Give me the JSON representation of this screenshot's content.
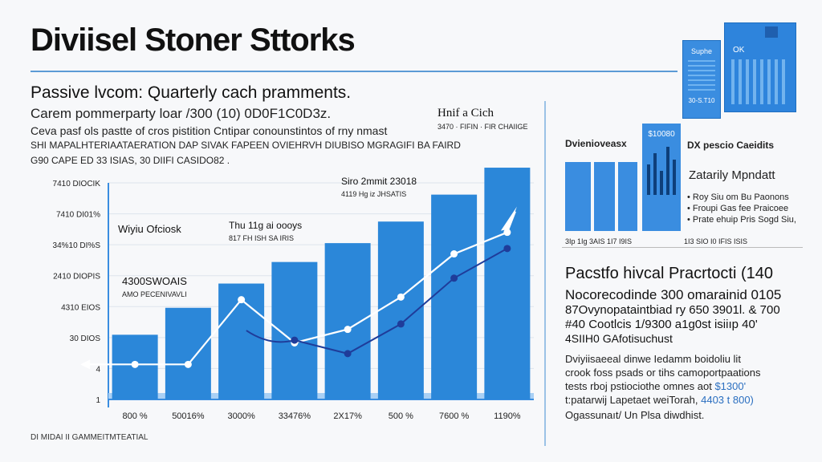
{
  "header": {
    "title": "Diviisel Stoner Sttorks",
    "subtitle": "Passive lvcom: Quarterly cach pramments.",
    "lines": [
      "Carem pommerparty loar /300 (10) 0D0F1C0D3z.",
      "Ceva pasf ols pastte of cros pistition Cntipar conounstintos of rny nmast",
      "SHI MAPALHTERIAATAERATION DAP SIVAK FAPEEN OVIEHRVH DIUBISO MGRAGIFI BA FAIRD",
      "G90 CAPE ED 33 ISIAS, 30 DIIFI CASIDO82 ."
    ]
  },
  "chart_data": {
    "type": "bar",
    "title": "Hnif a Cich",
    "subtitle": "3470 · FIFIN · FIR CHAIIGE",
    "categories": [
      "800 %",
      "50016%",
      "3000%",
      "33476%",
      "2X17%",
      "500 %",
      "7600 %",
      "1190%"
    ],
    "values": [
      24,
      34,
      43,
      51,
      58,
      66,
      76,
      86
    ],
    "ylim": [
      0,
      100
    ],
    "y_ticks": [
      "1",
      "4",
      "30 DIOS",
      "4310 EIOS",
      "2410 DIOPIS",
      "34%10 DI%S",
      "7410 DI01%",
      "7410 DIOCIK"
    ],
    "series": [
      {
        "values": [
          13,
          13,
          37,
          21,
          26,
          38,
          54,
          62
        ]
      },
      {
        "values": [
          null,
          null,
          null,
          22,
          17,
          28,
          45,
          56
        ]
      }
    ],
    "annotations": [
      {
        "label": "Wiyiu Ofciosk",
        "category": 0
      },
      {
        "label": "Thu 11g ai oooys",
        "sub": "817 FH ISH SA IRIS",
        "category": 2
      },
      {
        "label": "Siro 2mmit 23018",
        "sub": "4119 Hg iz JHSATIS",
        "category": 4
      },
      {
        "label": "4300SWOAIS",
        "sub": "AMO PECENIVAVLI",
        "category": 0
      }
    ]
  },
  "cards": {
    "card1": {
      "label": "Suphe",
      "value": "30-S.T10"
    },
    "card2": {
      "label": "OK"
    }
  },
  "panel": {
    "left_title": "Dvienioveasx",
    "mini_chart_value": "$10080",
    "right_title": "DX pescio Caeidits",
    "right_subtitle": "Zatarily Mpndatt",
    "bullets": [
      "Roy Siu om Bu Paonons",
      "Froupi Gas fee Praicoee",
      "Prate ehuip Pris Sogd Siu,"
    ],
    "axis_left": "3Ip 1Ig 3AIS 1I7 I9IS",
    "axis_right": "1I3 SIO I0 IFIS ISIS"
  },
  "summary": {
    "title": "Pacstfo hivcal Pracrtocti (140",
    "lines": [
      "Nocorecodinde 300 omarainid 0105",
      "87Ovynopataintbiad ry 650 3901l. & 700",
      "#40 Cootlcis 1/9300 a1g0st isiiıp 40'",
      "4SIIH0 GAfotisuchust"
    ],
    "notes": [
      "Dviyiisaeeal dinwe Iedamm boidoliu lit",
      "crook foss psads or tihs camoportpaations",
      "tests rboj pstiociothe omnes aot",
      "t:patarwij Lapetaet weiTorah,",
      "Ogassunaıt/ Un Plsa diwdhist."
    ],
    "highlight_1": "$1300'",
    "highlight_2": "4403 t 800)"
  },
  "footer": {
    "label": "DI MIDAI II GAMMEITMTEATIAL"
  },
  "colors": {
    "bar": "#2b87d9",
    "bar_light": "#5aa7ea",
    "line_white": "#ffffff",
    "line_dark": "#1f3c9a",
    "accent": "#5b9bd5"
  }
}
